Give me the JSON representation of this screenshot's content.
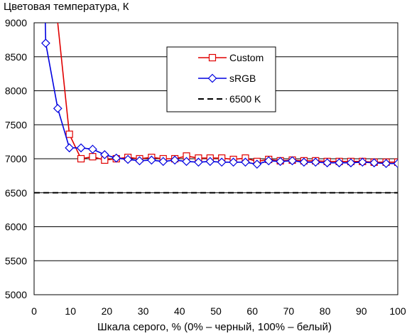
{
  "chart_data": {
    "type": "line",
    "title": "Цветовая температура, К",
    "xlabel": "Шкала серого, % (0% – черный, 100% – белый)",
    "ylabel": "",
    "xlim": [
      0,
      100
    ],
    "ylim": [
      5000,
      9000
    ],
    "x_ticks": [
      0,
      10,
      20,
      30,
      40,
      50,
      60,
      70,
      80,
      90,
      100
    ],
    "y_ticks": [
      5000,
      5500,
      6000,
      6500,
      7000,
      7500,
      8000,
      8500,
      9000
    ],
    "grid": "horizontal",
    "legend_position": "top-right",
    "series": [
      {
        "name": "Custom",
        "color": "#e00000",
        "marker": "square",
        "x": [
          6.5,
          9.7,
          12.9,
          16.1,
          19.4,
          22.6,
          25.8,
          29.0,
          32.3,
          35.5,
          38.7,
          41.9,
          45.2,
          48.4,
          51.6,
          54.8,
          58.1,
          61.3,
          64.5,
          67.7,
          71.0,
          74.2,
          77.4,
          80.6,
          83.9,
          87.1,
          90.3,
          93.5,
          96.8,
          100
        ],
        "y": [
          9000,
          7360,
          7000,
          7030,
          6980,
          7000,
          7020,
          7000,
          7020,
          7000,
          7000,
          7040,
          7010,
          7010,
          7010,
          6990,
          7010,
          6960,
          6990,
          6970,
          6980,
          6970,
          6970,
          6960,
          6960,
          6960,
          6960,
          6950,
          6950,
          6950
        ]
      },
      {
        "name": "sRGB",
        "color": "#0000e0",
        "marker": "diamond",
        "x": [
          3.2,
          6.5,
          9.7,
          12.9,
          16.1,
          19.4,
          22.6,
          25.8,
          29.0,
          32.3,
          35.5,
          38.7,
          41.9,
          45.2,
          48.4,
          51.6,
          54.8,
          58.1,
          61.3,
          64.5,
          67.7,
          71.0,
          74.2,
          77.4,
          80.6,
          83.9,
          87.1,
          90.3,
          93.5,
          96.8,
          100
        ],
        "y": [
          8700,
          7740,
          7160,
          7160,
          7140,
          7060,
          7010,
          6990,
          6970,
          6980,
          6960,
          6980,
          6960,
          6950,
          6960,
          6950,
          6950,
          6950,
          6920,
          6970,
          6960,
          6970,
          6950,
          6950,
          6940,
          6940,
          6940,
          6950,
          6940,
          6930,
          6930
        ]
      },
      {
        "name": "6500 K",
        "color": "#000000",
        "marker": "none",
        "style": "dashed",
        "x": [
          0,
          100
        ],
        "y": [
          6500,
          6500
        ]
      }
    ]
  }
}
